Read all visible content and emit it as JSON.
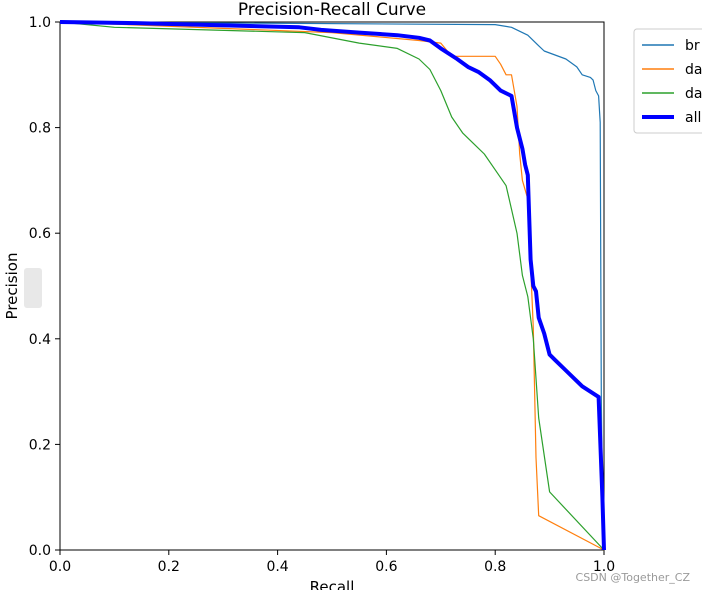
{
  "chart_data": {
    "type": "line",
    "title": "Precision-Recall Curve",
    "xlabel": "Recall",
    "ylabel": "Precision",
    "xlim": [
      0,
      1
    ],
    "ylim": [
      0,
      1
    ],
    "xticks": [
      "0.0",
      "0.2",
      "0.4",
      "0.6",
      "0.8",
      "1.0"
    ],
    "yticks": [
      "0.0",
      "0.2",
      "0.4",
      "0.6",
      "0.8",
      "1.0"
    ],
    "legend_placement": "outside-top-right",
    "grid": false,
    "series": [
      {
        "name": "br",
        "color": "#1f77b4",
        "x": [
          0.0,
          0.8,
          0.83,
          0.86,
          0.88,
          0.89,
          0.93,
          0.95,
          0.96,
          0.975,
          0.98,
          0.985,
          0.99,
          0.993,
          0.995,
          0.997,
          1.0
        ],
        "y": [
          1.0,
          0.995,
          0.99,
          0.975,
          0.955,
          0.945,
          0.93,
          0.915,
          0.9,
          0.895,
          0.89,
          0.87,
          0.86,
          0.81,
          0.29,
          0.1,
          0.0
        ]
      },
      {
        "name": "da",
        "color": "#ff7f0e",
        "x": [
          0.0,
          0.5,
          0.66,
          0.7,
          0.72,
          0.8,
          0.81,
          0.82,
          0.83,
          0.84,
          0.845,
          0.85,
          0.86,
          0.87,
          0.875,
          0.88,
          1.0
        ],
        "y": [
          1.0,
          0.98,
          0.965,
          0.96,
          0.935,
          0.935,
          0.92,
          0.9,
          0.9,
          0.84,
          0.75,
          0.7,
          0.665,
          0.42,
          0.175,
          0.065,
          0.0
        ]
      },
      {
        "name": "da",
        "color": "#2ca02c",
        "x": [
          0.0,
          0.1,
          0.45,
          0.55,
          0.62,
          0.66,
          0.68,
          0.7,
          0.72,
          0.74,
          0.76,
          0.78,
          0.8,
          0.82,
          0.84,
          0.85,
          0.86,
          0.87,
          0.88,
          0.9,
          1.0
        ],
        "y": [
          1.0,
          0.99,
          0.98,
          0.96,
          0.95,
          0.93,
          0.91,
          0.87,
          0.82,
          0.79,
          0.77,
          0.75,
          0.72,
          0.69,
          0.6,
          0.52,
          0.48,
          0.4,
          0.25,
          0.11,
          0.0
        ]
      },
      {
        "name": "all",
        "color": "#0000ff",
        "bold": true,
        "x": [
          0.0,
          0.14,
          0.44,
          0.48,
          0.55,
          0.62,
          0.66,
          0.68,
          0.7,
          0.73,
          0.75,
          0.77,
          0.79,
          0.81,
          0.83,
          0.84,
          0.845,
          0.85,
          0.855,
          0.86,
          0.865,
          0.87,
          0.875,
          0.88,
          0.89,
          0.9,
          0.91,
          0.93,
          0.96,
          0.99,
          0.997,
          1.0
        ],
        "y": [
          1.0,
          0.998,
          0.99,
          0.985,
          0.98,
          0.975,
          0.97,
          0.965,
          0.95,
          0.93,
          0.915,
          0.905,
          0.89,
          0.87,
          0.86,
          0.8,
          0.78,
          0.76,
          0.73,
          0.71,
          0.55,
          0.5,
          0.49,
          0.44,
          0.41,
          0.37,
          0.36,
          0.34,
          0.31,
          0.29,
          0.1,
          0.0
        ]
      }
    ]
  },
  "watermark": "CSDN @Together_CZ"
}
